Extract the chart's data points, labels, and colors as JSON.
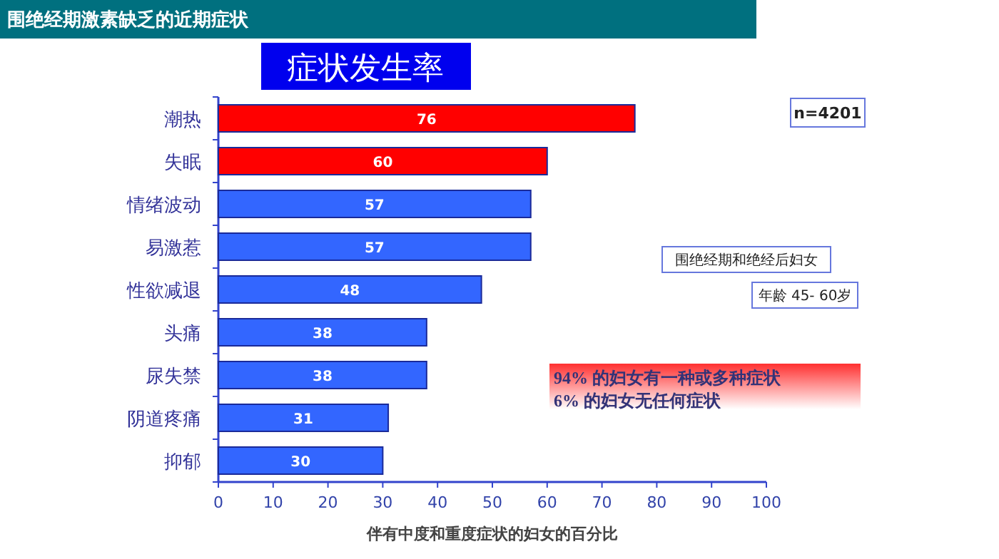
{
  "chart_data": {
    "type": "bar",
    "orientation": "horizontal",
    "title": "围绝经期激素缺乏的近期症状",
    "subtitle": "症状发生率",
    "xlabel": "伴有中度和重度症状的妇女的百分比",
    "categories": [
      "潮热",
      "失眠",
      "情绪波动",
      "易激惹",
      "性欲减退",
      "头痛",
      "尿失禁",
      "阴道疼痛",
      "抑郁"
    ],
    "values": [
      76,
      60,
      57,
      57,
      48,
      38,
      38,
      31,
      30
    ],
    "colors": [
      "#ff0000",
      "#ff0000",
      "#3366ff",
      "#3366ff",
      "#3366ff",
      "#3366ff",
      "#3366ff",
      "#3366ff",
      "#3366ff"
    ],
    "data_labels": true,
    "xlim": [
      0,
      100
    ],
    "xticks": [
      0,
      10,
      20,
      30,
      40,
      50,
      60,
      70,
      80,
      90,
      100
    ],
    "annotations": [
      "n=4201",
      "围绝经期和绝经后妇女",
      "年龄 45- 60岁",
      "94% 的妇女有一种或多种症状",
      "6% 的妇女无任何症状"
    ]
  }
}
